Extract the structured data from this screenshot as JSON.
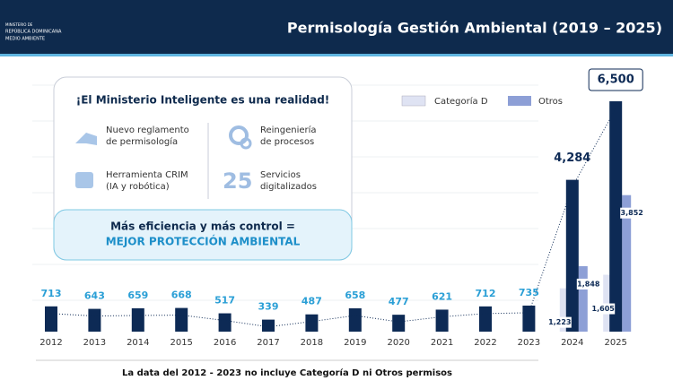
{
  "header": {
    "logo_lines": [
      "MINISTERIO DE",
      "REPÚBLICA DOMINICANA",
      "MEDIO AMBIENTE"
    ],
    "title": "Permisología Gestión Ambiental (2019 – 2025)"
  },
  "card": {
    "title": "¡El Ministerio Inteligente es una realidad!",
    "items": [
      {
        "lines": [
          "Nuevo reglamento",
          "de permisología"
        ]
      },
      {
        "lines": [
          "Reingeniería",
          "de procesos"
        ]
      },
      {
        "lines": [
          "Herramienta CRIM",
          "(IA y robótica)"
        ]
      },
      {
        "number": "25",
        "lines": [
          "Servicios",
          "digitalizados"
        ]
      }
    ],
    "footer": [
      "Más eficiencia y más control =",
      "MEJOR PROTECCIÓN AMBIENTAL"
    ]
  },
  "chart_data": {
    "type": "bar",
    "categories": [
      "2012",
      "2013",
      "2014",
      "2015",
      "2016",
      "2017",
      "2018",
      "2019",
      "2020",
      "2021",
      "2022",
      "2023",
      "2024",
      "2025"
    ],
    "values": [
      713,
      643,
      659,
      668,
      517,
      339,
      487,
      658,
      477,
      621,
      712,
      735,
      4284,
      6500
    ],
    "value_labels": [
      "713",
      "643",
      "659",
      "668",
      "517",
      "339",
      "487",
      "658",
      "477",
      "621",
      "712",
      "735",
      "4,284",
      "6,500"
    ],
    "color": "#0d2a55",
    "series": [
      {
        "name": "Categoría D",
        "color": "#dfe3f3",
        "values": [
          null,
          null,
          null,
          null,
          null,
          null,
          null,
          null,
          null,
          null,
          null,
          null,
          1223,
          1605
        ],
        "value_labels": [
          null,
          null,
          null,
          null,
          null,
          null,
          null,
          null,
          null,
          null,
          null,
          null,
          "1,223",
          "1,605"
        ]
      },
      {
        "name": "Otros",
        "color": "#8d9fd6",
        "values": [
          null,
          null,
          null,
          null,
          null,
          null,
          null,
          null,
          null,
          null,
          null,
          null,
          1848,
          3852
        ],
        "value_labels": [
          null,
          null,
          null,
          null,
          null,
          null,
          null,
          null,
          null,
          null,
          null,
          null,
          "1,848",
          "3,852"
        ]
      }
    ],
    "note": "La data del 2012 - 2023 no incluye Categoría D ni Otros permisos"
  }
}
